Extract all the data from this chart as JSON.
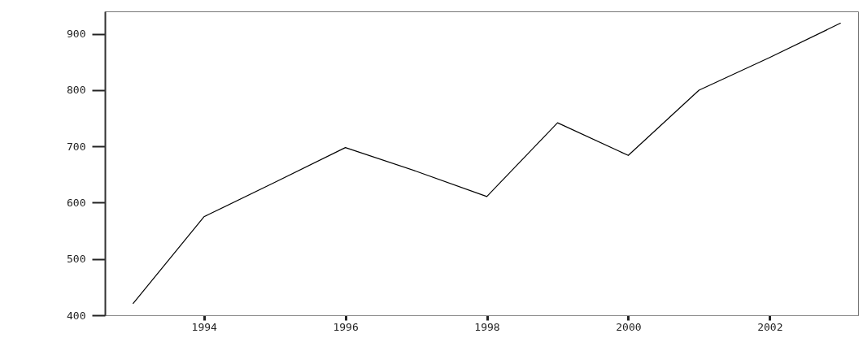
{
  "chart_data": {
    "type": "line",
    "x": [
      1993,
      1994,
      1995,
      1996,
      1997,
      1998,
      1999,
      2000,
      2001,
      2002,
      2003
    ],
    "series": [
      {
        "color": "#000000",
        "values": [
          421,
          575,
          636,
          698,
          656,
          611,
          742,
          684,
          800,
          858,
          919
        ]
      }
    ],
    "xlim": [
      1992.6,
      2003.25
    ],
    "xticks": [
      1994,
      1996,
      1998,
      2000,
      2002
    ],
    "ylim": [
      400,
      940
    ],
    "yticks": [
      400,
      500,
      600,
      700,
      800,
      900
    ],
    "grid": false,
    "marker": "none",
    "line_style": "solid"
  }
}
